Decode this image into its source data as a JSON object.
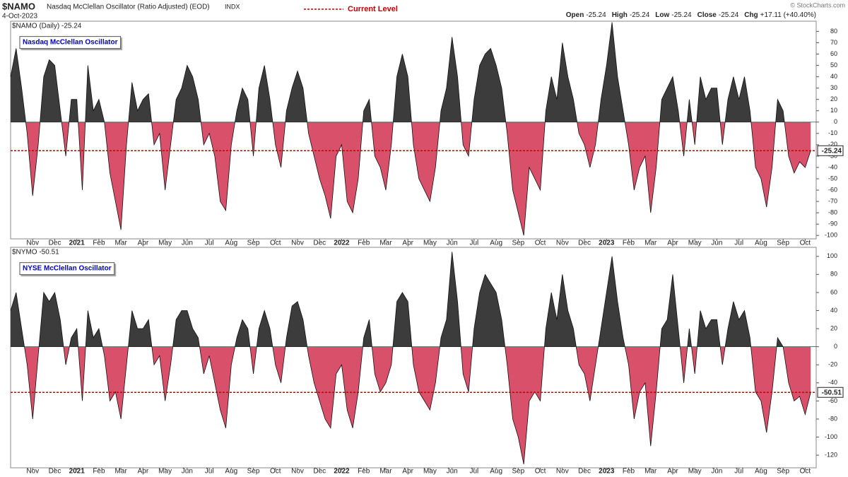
{
  "header": {
    "symbol": "$NAMO",
    "description": "Nasdaq McClellan Oscillator (Ratio Adjusted) (EOD)",
    "exchange": "INDX",
    "date": "4-Oct-2023",
    "legend": "Current Level",
    "copyright": "© StockCharts.com",
    "quote": [
      {
        "label": "Open",
        "value": "-25.24"
      },
      {
        "label": "High",
        "value": "-25.24"
      },
      {
        "label": "Low",
        "value": "-25.24"
      },
      {
        "label": "Close",
        "value": "-25.24"
      },
      {
        "label": "Chg",
        "value": "+17.11 (+40.40%)"
      }
    ]
  },
  "chart_data": [
    {
      "type": "area",
      "panel_label": "$NAMO (Daily) -25.24",
      "title": "Nasdaq McClellan Oscillator",
      "positive_color": "#3c3c3c",
      "negative_color": "#d9506a",
      "level_color": "#c00000",
      "current_level": -25.24,
      "values": [
        40,
        65,
        30,
        -10,
        -65,
        -20,
        40,
        55,
        50,
        10,
        -30,
        20,
        20,
        -60,
        50,
        10,
        20,
        0,
        -45,
        -70,
        -95,
        -20,
        35,
        10,
        20,
        25,
        -20,
        -10,
        -60,
        -20,
        20,
        30,
        50,
        40,
        20,
        -20,
        -10,
        -30,
        -70,
        -78,
        -20,
        10,
        30,
        20,
        -30,
        30,
        50,
        20,
        -20,
        -40,
        10,
        30,
        45,
        30,
        -10,
        -30,
        -50,
        -65,
        -85,
        -30,
        -20,
        -70,
        -80,
        -50,
        10,
        20,
        -30,
        -40,
        -60,
        -20,
        40,
        60,
        40,
        -20,
        -50,
        -60,
        -70,
        -40,
        10,
        30,
        75,
        40,
        -20,
        -30,
        20,
        50,
        60,
        65,
        50,
        30,
        -10,
        -60,
        -80,
        -100,
        -40,
        -50,
        -60,
        10,
        40,
        20,
        70,
        40,
        20,
        -10,
        -20,
        -40,
        -20,
        20,
        50,
        88,
        40,
        10,
        -20,
        -60,
        -40,
        -30,
        -80,
        -40,
        20,
        30,
        40,
        10,
        -30,
        20,
        -20,
        40,
        20,
        30,
        30,
        -20,
        20,
        40,
        20,
        40,
        10,
        -40,
        -50,
        -75,
        -40,
        20,
        10,
        -30,
        -45,
        -35,
        -40,
        -25.24
      ],
      "xlim": [
        0,
        146
      ],
      "ylim": [
        -103,
        89
      ],
      "yticks": [
        -100,
        -90,
        -80,
        -70,
        -60,
        -50,
        -40,
        -30,
        -20,
        -10,
        0,
        10,
        20,
        30,
        40,
        50,
        60,
        70,
        80
      ],
      "xticks": [
        {
          "value": 4,
          "label": "Nov"
        },
        {
          "value": 8,
          "label": "Dec"
        },
        {
          "value": 12,
          "label": "2021"
        },
        {
          "value": 16,
          "label": "Feb"
        },
        {
          "value": 20,
          "label": "Mar"
        },
        {
          "value": 24,
          "label": "Apr"
        },
        {
          "value": 28,
          "label": "May"
        },
        {
          "value": 32,
          "label": "Jun"
        },
        {
          "value": 36,
          "label": "Jul"
        },
        {
          "value": 40,
          "label": "Aug"
        },
        {
          "value": 44,
          "label": "Sep"
        },
        {
          "value": 48,
          "label": "Oct"
        },
        {
          "value": 52,
          "label": "Nov"
        },
        {
          "value": 56,
          "label": "Dec"
        },
        {
          "value": 60,
          "label": "2022"
        },
        {
          "value": 64,
          "label": "Feb"
        },
        {
          "value": 68,
          "label": "Mar"
        },
        {
          "value": 72,
          "label": "Apr"
        },
        {
          "value": 76,
          "label": "May"
        },
        {
          "value": 80,
          "label": "Jun"
        },
        {
          "value": 84,
          "label": "Jul"
        },
        {
          "value": 88,
          "label": "Aug"
        },
        {
          "value": 92,
          "label": "Sep"
        },
        {
          "value": 96,
          "label": "Oct"
        },
        {
          "value": 100,
          "label": "Nov"
        },
        {
          "value": 104,
          "label": "Dec"
        },
        {
          "value": 108,
          "label": "2023"
        },
        {
          "value": 112,
          "label": "Feb"
        },
        {
          "value": 116,
          "label": "Mar"
        },
        {
          "value": 120,
          "label": "Apr"
        },
        {
          "value": 124,
          "label": "May"
        },
        {
          "value": 128,
          "label": "Jun"
        },
        {
          "value": 132,
          "label": "Jul"
        },
        {
          "value": 136,
          "label": "Aug"
        },
        {
          "value": 140,
          "label": "Sep"
        },
        {
          "value": 144,
          "label": "Oct"
        }
      ]
    },
    {
      "type": "area",
      "panel_label": "$NYMO -50.51",
      "title": "NYSE McClellan Oscillator",
      "positive_color": "#3c3c3c",
      "negative_color": "#d9506a",
      "level_color": "#c00000",
      "current_level": -50.51,
      "values": [
        40,
        60,
        20,
        -20,
        -80,
        -10,
        60,
        50,
        60,
        30,
        -20,
        10,
        20,
        -60,
        40,
        10,
        20,
        -10,
        -60,
        -50,
        -80,
        -20,
        40,
        20,
        20,
        30,
        -20,
        -10,
        -60,
        -20,
        30,
        40,
        40,
        20,
        10,
        -30,
        -10,
        -40,
        -70,
        -90,
        -20,
        10,
        30,
        20,
        -30,
        20,
        40,
        20,
        -20,
        -40,
        10,
        45,
        50,
        30,
        -10,
        -40,
        -60,
        -80,
        -90,
        -30,
        -20,
        -70,
        -90,
        -50,
        10,
        30,
        -30,
        -50,
        -40,
        -20,
        50,
        60,
        50,
        -20,
        -50,
        -60,
        -70,
        -40,
        10,
        30,
        105,
        50,
        -30,
        -50,
        20,
        60,
        80,
        70,
        60,
        30,
        -20,
        -80,
        -100,
        -130,
        -60,
        -50,
        -60,
        20,
        60,
        30,
        80,
        40,
        20,
        -20,
        -30,
        -60,
        -20,
        20,
        60,
        100,
        50,
        10,
        -20,
        -80,
        -50,
        -40,
        -110,
        -50,
        20,
        30,
        80,
        20,
        -40,
        20,
        -30,
        40,
        20,
        30,
        30,
        -20,
        20,
        50,
        30,
        40,
        10,
        -50,
        -60,
        -95,
        -50,
        10,
        0,
        -40,
        -60,
        -55,
        -75,
        -50.51
      ],
      "xlim": [
        0,
        146
      ],
      "ylim": [
        -134,
        110
      ],
      "yticks": [
        -120,
        -100,
        -80,
        -60,
        -40,
        -20,
        0,
        20,
        40,
        60,
        80,
        100
      ],
      "xticks": [
        {
          "value": 4,
          "label": "Nov"
        },
        {
          "value": 8,
          "label": "Dec"
        },
        {
          "value": 12,
          "label": "2021"
        },
        {
          "value": 16,
          "label": "Feb"
        },
        {
          "value": 20,
          "label": "Mar"
        },
        {
          "value": 24,
          "label": "Apr"
        },
        {
          "value": 28,
          "label": "May"
        },
        {
          "value": 32,
          "label": "Jun"
        },
        {
          "value": 36,
          "label": "Jul"
        },
        {
          "value": 40,
          "label": "Aug"
        },
        {
          "value": 44,
          "label": "Sep"
        },
        {
          "value": 48,
          "label": "Oct"
        },
        {
          "value": 52,
          "label": "Nov"
        },
        {
          "value": 56,
          "label": "Dec"
        },
        {
          "value": 60,
          "label": "2022"
        },
        {
          "value": 64,
          "label": "Feb"
        },
        {
          "value": 68,
          "label": "Mar"
        },
        {
          "value": 72,
          "label": "Apr"
        },
        {
          "value": 76,
          "label": "May"
        },
        {
          "value": 80,
          "label": "Jun"
        },
        {
          "value": 84,
          "label": "Jul"
        },
        {
          "value": 88,
          "label": "Aug"
        },
        {
          "value": 92,
          "label": "Sep"
        },
        {
          "value": 96,
          "label": "Oct"
        },
        {
          "value": 100,
          "label": "Nov"
        },
        {
          "value": 104,
          "label": "Dec"
        },
        {
          "value": 108,
          "label": "2023"
        },
        {
          "value": 112,
          "label": "Feb"
        },
        {
          "value": 116,
          "label": "Mar"
        },
        {
          "value": 120,
          "label": "Apr"
        },
        {
          "value": 124,
          "label": "May"
        },
        {
          "value": 128,
          "label": "Jun"
        },
        {
          "value": 132,
          "label": "Jul"
        },
        {
          "value": 136,
          "label": "Aug"
        },
        {
          "value": 140,
          "label": "Sep"
        },
        {
          "value": 144,
          "label": "Oct"
        }
      ]
    }
  ]
}
